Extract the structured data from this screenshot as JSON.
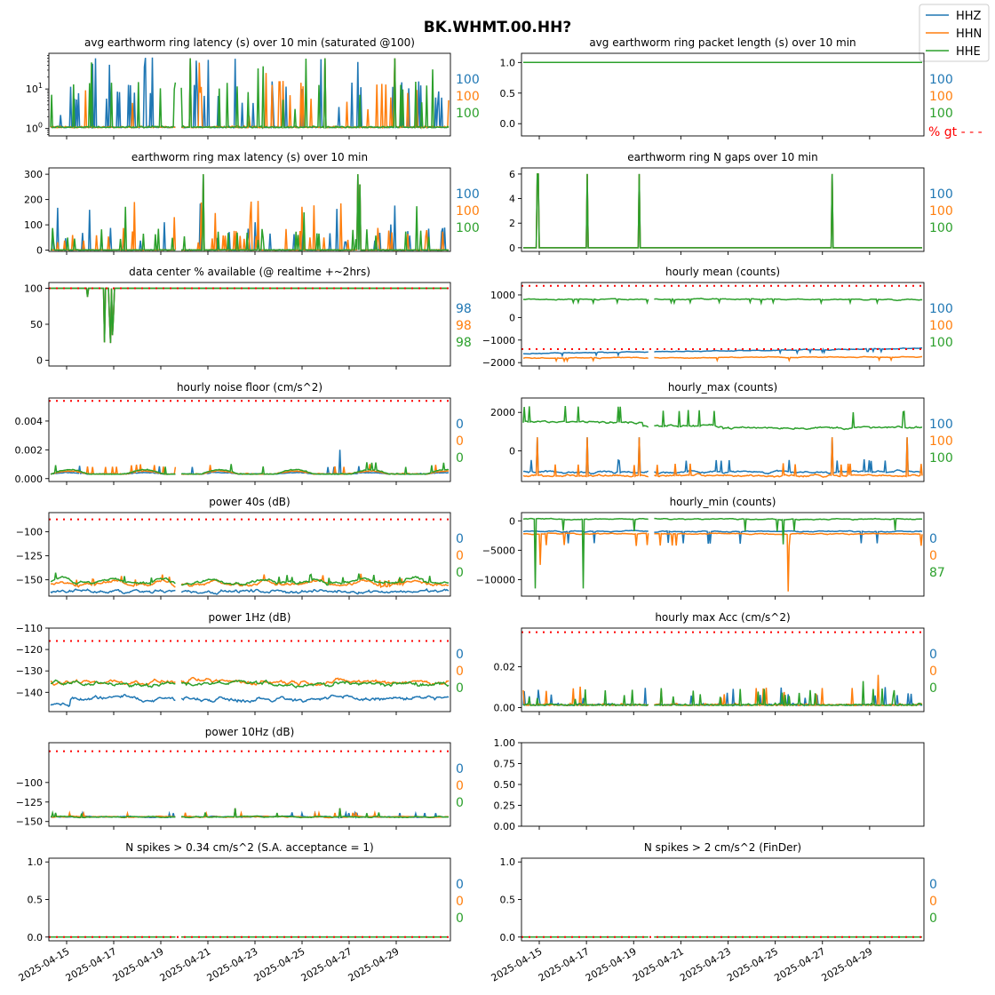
{
  "figure": {
    "title": "BK.WHMT.00.HH?",
    "legend": [
      {
        "label": "HHZ",
        "color": "#1f77b4"
      },
      {
        "label": "HHN",
        "color": "#ff7f0e"
      },
      {
        "label": "HHE",
        "color": "#2ca02c"
      }
    ],
    "legend_placement": "top-right",
    "threshold_color": "#ff0000",
    "gt_label": "% gt - - -",
    "date_ticks": [
      "2025-04-15",
      "2025-04-17",
      "2025-04-19",
      "2025-04-21",
      "2025-04-23",
      "2025-04-25",
      "2025-04-27",
      "2025-04-29"
    ]
  },
  "chart_data": [
    {
      "type": "line",
      "title": "avg earthworm ring latency (s)   over 10 min (saturated @100)",
      "yscale": "log",
      "ylim": [
        0.65,
        80
      ],
      "yticks": [
        {
          "v": 1,
          "label": "10",
          "sup": "0"
        },
        {
          "v": 10,
          "label": "10",
          "sup": "1"
        }
      ],
      "pct": [
        "100",
        "100",
        "100"
      ],
      "grid": false
    },
    {
      "type": "line",
      "title": "avg earthworm ring packet length (s)   over 10 min",
      "yscale": "linear",
      "ylim": [
        -0.2,
        1.15
      ],
      "yticks": [
        {
          "v": 0,
          "label": "0.0"
        },
        {
          "v": 0.5,
          "label": "0.5"
        },
        {
          "v": 1,
          "label": "1.0"
        }
      ],
      "pct": [
        "100",
        "100",
        "100"
      ],
      "grid": false
    },
    {
      "type": "line",
      "title": "earthworm ring max latency (s)   over 10 min",
      "yscale": "linear",
      "ylim": [
        -5,
        325
      ],
      "yticks": [
        {
          "v": 0,
          "label": "0"
        },
        {
          "v": 100,
          "label": "100"
        },
        {
          "v": 200,
          "label": "200"
        },
        {
          "v": 300,
          "label": "300"
        }
      ],
      "pct": [
        "100",
        "100",
        "100"
      ],
      "grid": false
    },
    {
      "type": "line",
      "title": "earthworm ring N gaps   over 10 min",
      "yscale": "linear",
      "ylim": [
        -0.3,
        6.5
      ],
      "yticks": [
        {
          "v": 0,
          "label": "0"
        },
        {
          "v": 2,
          "label": "2"
        },
        {
          "v": 4,
          "label": "4"
        },
        {
          "v": 6,
          "label": "6"
        }
      ],
      "pct": [
        "100",
        "100",
        "100"
      ],
      "grid": false
    },
    {
      "type": "line",
      "title": "data center % available (@ realtime +~2hrs)",
      "yscale": "linear",
      "ylim": [
        -8,
        108
      ],
      "yticks": [
        {
          "v": 0,
          "label": "0"
        },
        {
          "v": 50,
          "label": "50"
        },
        {
          "v": 100,
          "label": "100"
        }
      ],
      "threshold": [
        100
      ],
      "pct": [
        "98",
        "98",
        "98"
      ],
      "grid": false
    },
    {
      "type": "line",
      "title": "hourly mean (counts)",
      "yscale": "linear",
      "ylim": [
        -2150,
        1550
      ],
      "yticks": [
        {
          "v": -2000,
          "label": "−2000"
        },
        {
          "v": -1000,
          "label": "−1000"
        },
        {
          "v": 0,
          "label": "0"
        },
        {
          "v": 1000,
          "label": "1000"
        }
      ],
      "threshold": [
        1400,
        -1400
      ],
      "pct": [
        "100",
        "100",
        "100"
      ],
      "grid": false
    },
    {
      "type": "line",
      "title": "hourly noise floor (cm/s^2)",
      "yscale": "linear",
      "ylim": [
        -0.0002,
        0.0056
      ],
      "yticks": [
        {
          "v": 0,
          "label": "0.000"
        },
        {
          "v": 0.002,
          "label": "0.002"
        },
        {
          "v": 0.004,
          "label": "0.004"
        }
      ],
      "threshold": [
        0.0054
      ],
      "pct": [
        "0",
        "0",
        "0"
      ],
      "grid": false
    },
    {
      "type": "line",
      "title": "hourly_max (counts)",
      "yscale": "linear",
      "ylim": [
        -1600,
        2750
      ],
      "yticks": [
        {
          "v": 0,
          "label": "0"
        },
        {
          "v": 2000,
          "label": "2000"
        }
      ],
      "pct": [
        "100",
        "100",
        "100"
      ],
      "grid": false
    },
    {
      "type": "line",
      "title": "power 40s (dB)",
      "yscale": "linear",
      "ylim": [
        -167,
        -80
      ],
      "yticks": [
        {
          "v": -150,
          "label": "−150"
        },
        {
          "v": -125,
          "label": "−125"
        },
        {
          "v": -100,
          "label": "−100"
        }
      ],
      "threshold": [
        -87
      ],
      "pct": [
        "0",
        "0",
        "0"
      ],
      "grid": false
    },
    {
      "type": "line",
      "title": "hourly_min (counts)",
      "yscale": "linear",
      "ylim": [
        -12800,
        1400
      ],
      "yticks": [
        {
          "v": -10000,
          "label": "−10000"
        },
        {
          "v": -5000,
          "label": "−5000"
        },
        {
          "v": 0,
          "label": "0"
        }
      ],
      "pct": [
        "0",
        "0",
        "87"
      ],
      "grid": false
    },
    {
      "type": "line",
      "title": "power 1Hz (dB)",
      "yscale": "linear",
      "ylim": [
        -149,
        -110
      ],
      "yticks": [
        {
          "v": -140,
          "label": "−140"
        },
        {
          "v": -130,
          "label": "−130"
        },
        {
          "v": -120,
          "label": "−120"
        },
        {
          "v": -110,
          "label": "−110"
        }
      ],
      "threshold": [
        -116
      ],
      "pct": [
        "0",
        "0",
        "0"
      ],
      "grid": false
    },
    {
      "type": "line",
      "title": "hourly max Acc (cm/s^2)",
      "yscale": "linear",
      "ylim": [
        -0.002,
        0.039
      ],
      "yticks": [
        {
          "v": 0,
          "label": "0.00"
        },
        {
          "v": 0.02,
          "label": "0.02"
        }
      ],
      "threshold": [
        0.037
      ],
      "pct": [
        "0",
        "0",
        "0"
      ],
      "grid": false
    },
    {
      "type": "line",
      "title": "power 10Hz (dB)",
      "yscale": "linear",
      "ylim": [
        -156,
        -49
      ],
      "yticks": [
        {
          "v": -150,
          "label": "−150"
        },
        {
          "v": -125,
          "label": "−125"
        },
        {
          "v": -100,
          "label": "−100"
        }
      ],
      "threshold": [
        -60
      ],
      "pct": [
        "0",
        "0",
        "0"
      ],
      "grid": false
    },
    {
      "type": "empty",
      "title": "",
      "yscale": "linear",
      "ylim": [
        0,
        1
      ],
      "yticks": [
        {
          "v": 0,
          "label": "0.00"
        },
        {
          "v": 0.25,
          "label": "0.25"
        },
        {
          "v": 0.5,
          "label": "0.50"
        },
        {
          "v": 0.75,
          "label": "0.75"
        },
        {
          "v": 1,
          "label": "1.00"
        }
      ],
      "grid": false
    },
    {
      "type": "line",
      "title": "N spikes > 0.34 cm/s^2 (S.A. acceptance = 1)",
      "yscale": "linear",
      "ylim": [
        -0.05,
        1.05
      ],
      "yticks": [
        {
          "v": 0,
          "label": "0.0"
        },
        {
          "v": 0.5,
          "label": "0.5"
        },
        {
          "v": 1,
          "label": "1.0"
        }
      ],
      "threshold": [
        0
      ],
      "pct": [
        "0",
        "0",
        "0"
      ],
      "grid": false,
      "xticklabels": true
    },
    {
      "type": "line",
      "title": "N spikes > 2 cm/s^2 (FinDer)",
      "yscale": "linear",
      "ylim": [
        -0.05,
        1.05
      ],
      "yticks": [
        {
          "v": 0,
          "label": "0.0"
        },
        {
          "v": 0.5,
          "label": "0.5"
        },
        {
          "v": 1,
          "label": "1.0"
        }
      ],
      "threshold": [
        0
      ],
      "pct": [
        "0",
        "0",
        "0"
      ],
      "grid": false,
      "xticklabels": true
    }
  ]
}
